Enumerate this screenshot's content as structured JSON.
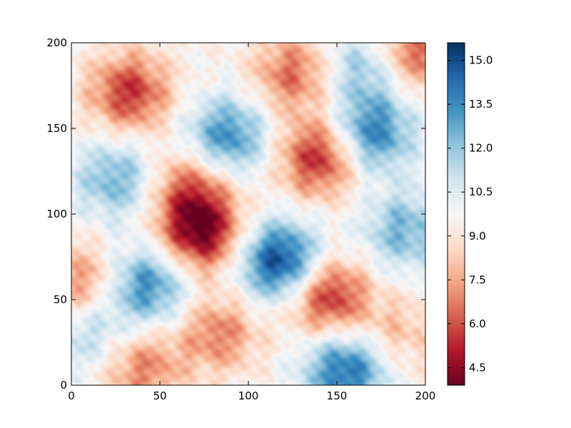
{
  "chart_data": {
    "type": "heatmap",
    "title": "",
    "xlabel": "",
    "ylabel": "",
    "xlim": [
      0,
      200
    ],
    "ylim": [
      0,
      200
    ],
    "x_ticks": [
      0,
      50,
      100,
      150,
      200
    ],
    "y_ticks": [
      0,
      50,
      100,
      150,
      200
    ],
    "x_tick_labels": [
      "0",
      "50",
      "100",
      "150",
      "200"
    ],
    "y_tick_labels": [
      "0",
      "50",
      "100",
      "150",
      "200"
    ],
    "colormap": "RdBu",
    "color_range": [
      3.9,
      15.6
    ],
    "colorbar_ticks": [
      4.5,
      6.0,
      7.5,
      9.0,
      10.5,
      12.0,
      13.5,
      15.0
    ],
    "colorbar_tick_labels": [
      "4.5",
      "6.0",
      "7.5",
      "9.0",
      "10.5",
      "12.0",
      "13.5",
      "15.0"
    ],
    "grid": false,
    "field_features": [
      {
        "x": 73,
        "y": 89,
        "value": 4.3
      },
      {
        "x": 33,
        "y": 171,
        "value": 5.5
      },
      {
        "x": 140,
        "y": 133,
        "value": 5.2
      },
      {
        "x": 145,
        "y": 52,
        "value": 5.2
      },
      {
        "x": 118,
        "y": 72,
        "value": 15.2
      },
      {
        "x": 88,
        "y": 145,
        "value": 13.5
      },
      {
        "x": 43,
        "y": 58,
        "value": 13.5
      },
      {
        "x": 170,
        "y": 147,
        "value": 13.8
      },
      {
        "x": 155,
        "y": 8,
        "value": 14.2
      },
      {
        "x": 25,
        "y": 120,
        "value": 12.5
      },
      {
        "x": 188,
        "y": 90,
        "value": 12.5
      },
      {
        "x": 125,
        "y": 182,
        "value": 6.5
      },
      {
        "x": 195,
        "y": 195,
        "value": 6.2
      },
      {
        "x": 83,
        "y": 30,
        "value": 6.8
      },
      {
        "x": 40,
        "y": 10,
        "value": 6.8
      },
      {
        "x": 5,
        "y": 60,
        "value": 7.0
      },
      {
        "x": 67,
        "y": 115,
        "value": 6.5
      },
      {
        "x": 185,
        "y": 30,
        "value": 8.0
      },
      {
        "x": 165,
        "y": 185,
        "value": 12.0
      },
      {
        "x": 10,
        "y": 30,
        "value": 11.5
      }
    ]
  }
}
